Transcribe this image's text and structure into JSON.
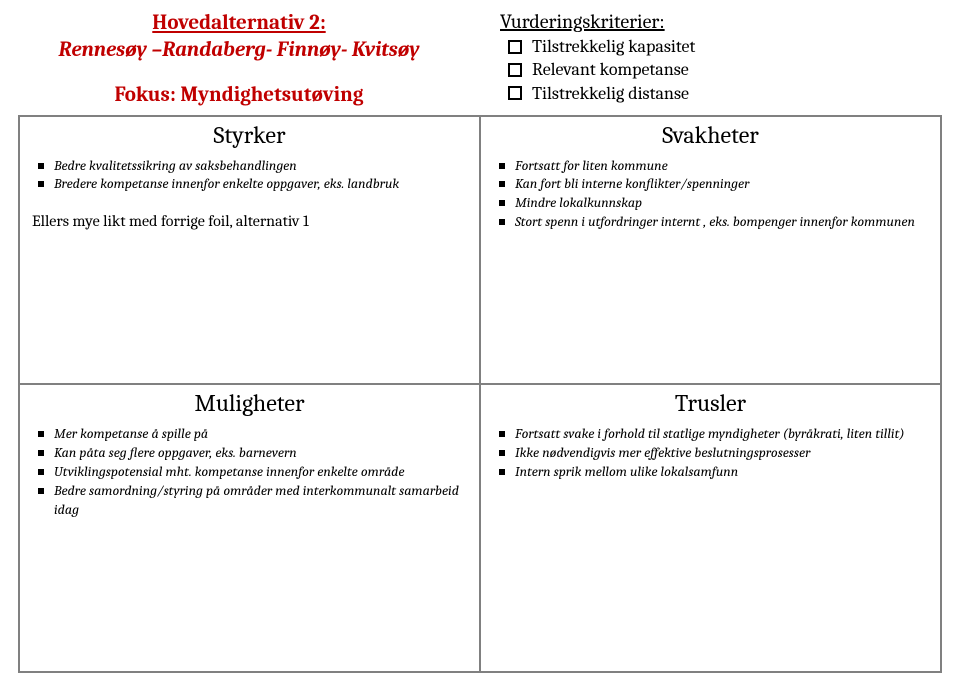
{
  "header": {
    "title_line1": "Hovedalternativ 2:",
    "title_line2": "Rennesøy –Randaberg- Finnøy- Kvitsøy",
    "focus": "Fokus: Myndighetsutøving"
  },
  "criteria": {
    "title": "Vurderingskriterier:",
    "items": [
      "Tilstrekkelig kapasitet",
      "Relevant kompetanse",
      "Tilstrekkelig distanse"
    ]
  },
  "swot": {
    "strengths": {
      "heading": "Styrker",
      "items": [
        "Bedre kvalitetssikring av saksbehandlingen",
        "Bredere kompetanse innenfor enkelte oppgaver, eks. landbruk"
      ],
      "note": "Ellers mye likt med forrige foil, alternativ 1"
    },
    "weaknesses": {
      "heading": "Svakheter",
      "items": [
        "Fortsatt for liten kommune",
        "Kan fort bli interne konflikter/spenninger",
        "Mindre lokalkunnskap",
        "Stort spenn i utfordringer internt , eks. bompenger innenfor kommunen"
      ]
    },
    "opportunities": {
      "heading": "Muligheter",
      "items": [
        "Mer kompetanse å spille på",
        "Kan påta seg flere oppgaver, eks. barnevern",
        "Utviklingspotensial  mht. kompetanse innenfor enkelte område",
        "Bedre samordning/styring  på områder med interkommunalt samarbeid idag"
      ]
    },
    "threats": {
      "heading": "Trusler",
      "items": [
        "Fortsatt svake i forhold til statlige myndigheter (byråkrati, liten tillit)",
        "Ikke nødvendigvis mer effektive beslutningsprosesser",
        "Intern sprik mellom ulike lokalsamfunn"
      ]
    }
  }
}
